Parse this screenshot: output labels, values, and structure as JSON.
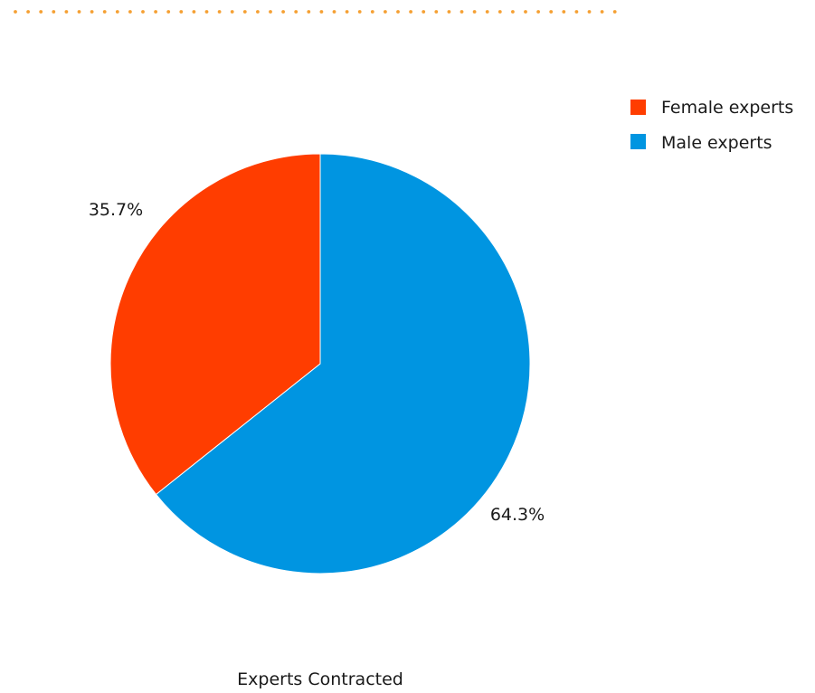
{
  "chart_data": {
    "type": "pie",
    "title": "",
    "caption": "Experts Contracted",
    "legend_position": "top-right",
    "start_angle_deg": 0,
    "direction": "counterclockwise",
    "slices": [
      {
        "label": "Male experts",
        "value": 64.3,
        "value_label": "64.3%",
        "color": "#0095e1"
      },
      {
        "label": "Female experts",
        "value": 35.7,
        "value_label": "35.7%",
        "color": "#ff3d00"
      }
    ],
    "legend": [
      {
        "label": "Female experts",
        "color": "#ff3d00"
      },
      {
        "label": "Male experts",
        "color": "#0095e1"
      }
    ]
  },
  "decoration": {
    "dotted_rule_color": "#f5a033"
  }
}
